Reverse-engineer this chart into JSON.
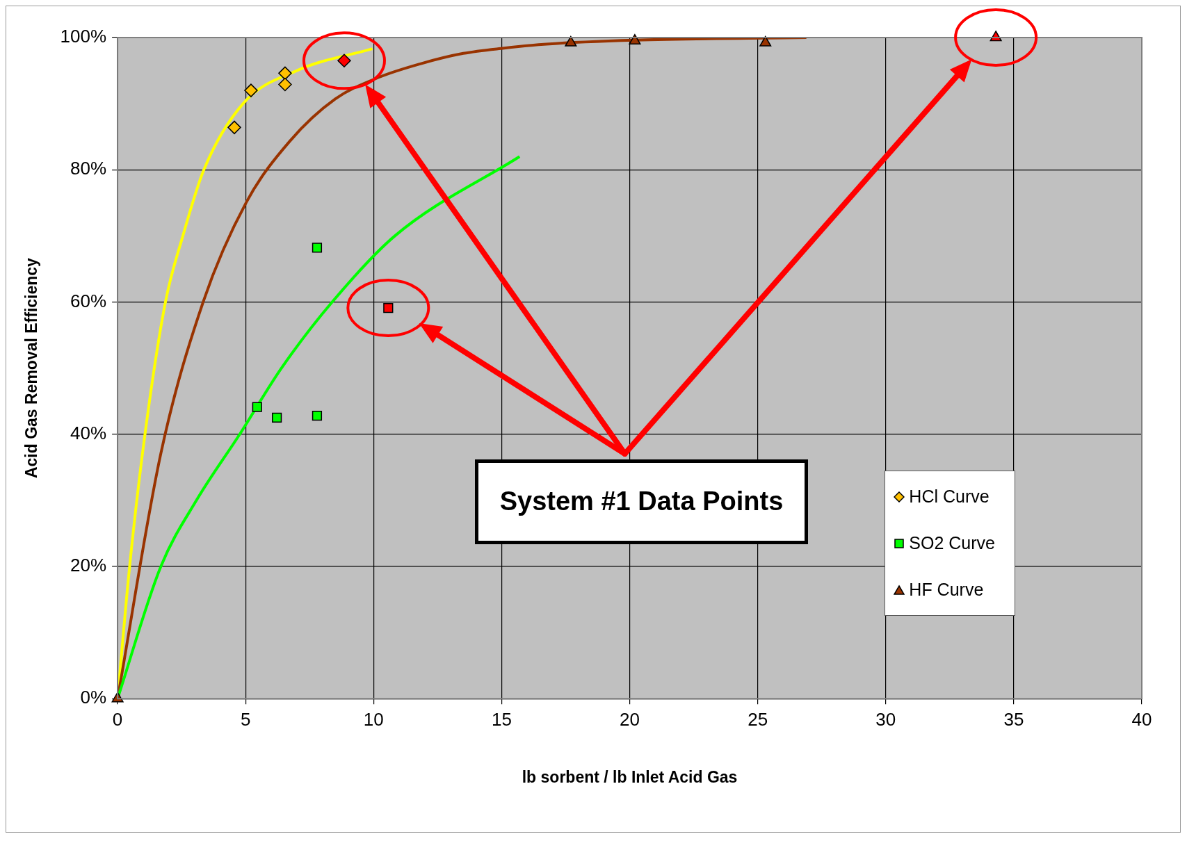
{
  "chart_data": {
    "type": "scatter",
    "xlabel": "lb sorbent / lb Inlet Acid Gas",
    "ylabel": "Acid Gas Removal Efficiency",
    "xlim": [
      0,
      40
    ],
    "xticks": [
      0,
      5,
      10,
      15,
      20,
      25,
      30,
      35,
      40
    ],
    "ylim": [
      0,
      100
    ],
    "yticks": [
      {
        "value": 0,
        "label": "0%"
      },
      {
        "value": 20,
        "label": "20%"
      },
      {
        "value": 40,
        "label": "40%"
      },
      {
        "value": 60,
        "label": "60%"
      },
      {
        "value": 80,
        "label": "80%"
      },
      {
        "value": 100,
        "label": "100%"
      }
    ],
    "grid": true,
    "legend": "right",
    "annotations": [
      "System #1 Data Points"
    ],
    "series": [
      {
        "type": "line",
        "color": "#ffff00",
        "marker": "none",
        "x": [
          0,
          0.47,
          1.07,
          1.87,
          2.55,
          3.37,
          4.9,
          7.0,
          9.95
        ],
        "values": [
          0,
          20,
          40,
          60,
          70,
          80,
          90,
          95,
          98.3
        ]
      },
      {
        "type": "line",
        "color": "#993300",
        "marker": "none",
        "x": [
          0,
          1.69,
          3.35,
          5.03,
          6.72,
          8.5,
          10.15,
          11.8,
          13.5,
          15.1,
          16.75,
          20.2,
          26.9
        ],
        "values": [
          0,
          37.1,
          60.1,
          75.1,
          84.3,
          90.7,
          93.9,
          96.0,
          97.6,
          98.4,
          99.0,
          99.6,
          100
        ]
      },
      {
        "type": "line",
        "color": "#00ff00",
        "marker": "none",
        "x": [
          0,
          1.69,
          3.08,
          4.77,
          6.4,
          8.38,
          10.83,
          15.7
        ],
        "values": [
          0,
          20,
          30,
          40,
          50,
          60,
          70,
          82
        ]
      },
      {
        "name": "HCl Curve",
        "color": "#ffc000",
        "marker": "diamond",
        "x": [
          4.56,
          5.21,
          6.54,
          6.54,
          8.85
        ],
        "values": [
          86.4,
          92.0,
          94.6,
          92.9,
          96.5
        ],
        "colors": [
          "#ffc000",
          "#ffc000",
          "#ffc000",
          "#ffc000",
          "#ff0000"
        ]
      },
      {
        "name": "SO2 Curve",
        "color": "#00ff00",
        "marker": "square",
        "x": [
          5.45,
          6.22,
          7.79,
          7.79,
          10.57
        ],
        "values": [
          44.1,
          42.5,
          42.8,
          68.2,
          59.1
        ],
        "colors": [
          "#00ff00",
          "#00ff00",
          "#00ff00",
          "#00ff00",
          "#ff0000"
        ]
      },
      {
        "name": "HF Curve",
        "color": "#993300",
        "marker": "triangle",
        "x": [
          0,
          17.7,
          20.2,
          25.3,
          34.3
        ],
        "values": [
          0,
          99.2,
          99.5,
          99.2,
          100
        ],
        "colors": [
          "#993300",
          "#993300",
          "#993300",
          "#993300",
          "#ff0000"
        ]
      }
    ]
  }
}
